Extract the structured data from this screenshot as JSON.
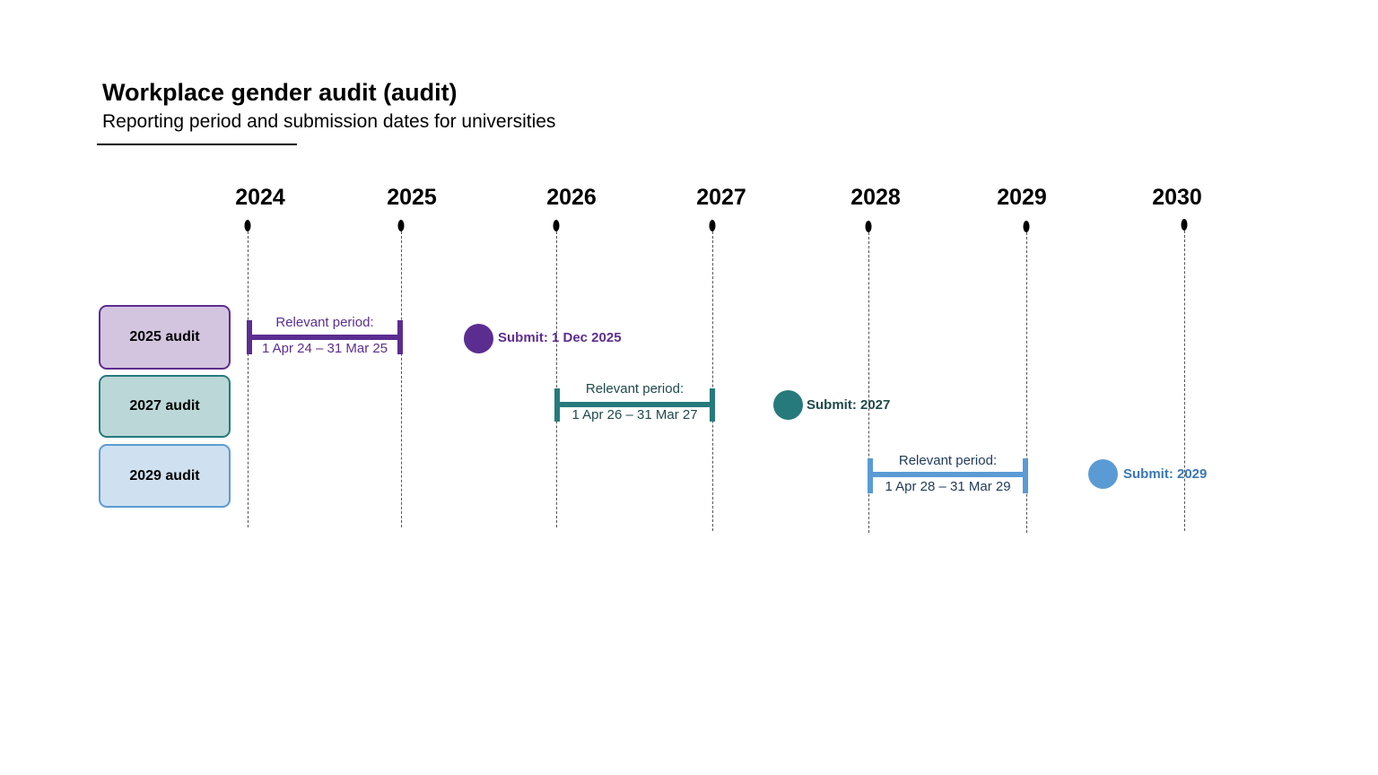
{
  "header": {
    "title": "Workplace gender audit (audit)",
    "subtitle": "Reporting period and submission dates for universities"
  },
  "timeline": {
    "years": [
      "2024",
      "2025",
      "2026",
      "2027",
      "2028",
      "2029",
      "2030"
    ]
  },
  "audits": [
    {
      "label": "2025 audit",
      "period_heading": "Relevant period:",
      "period_range": "1 Apr 24 – 31 Mar 25",
      "submit_label": "Submit: 1 Dec 2025",
      "color": "#5c2d91",
      "box_fill": "#d3c4df"
    },
    {
      "label": "2027 audit",
      "period_heading": "Relevant period:",
      "period_range": "1 Apr 26 – 31 Mar 27",
      "submit_label": "Submit: 2027",
      "color": "#267a7c",
      "box_fill": "#bcd7d7"
    },
    {
      "label": "2029 audit",
      "period_heading": "Relevant period:",
      "period_range": "1 Apr 28 – 31 Mar 29",
      "submit_label": "Submit: 2029",
      "color": "#5b9bd5",
      "box_fill": "#cfe0f1"
    }
  ]
}
